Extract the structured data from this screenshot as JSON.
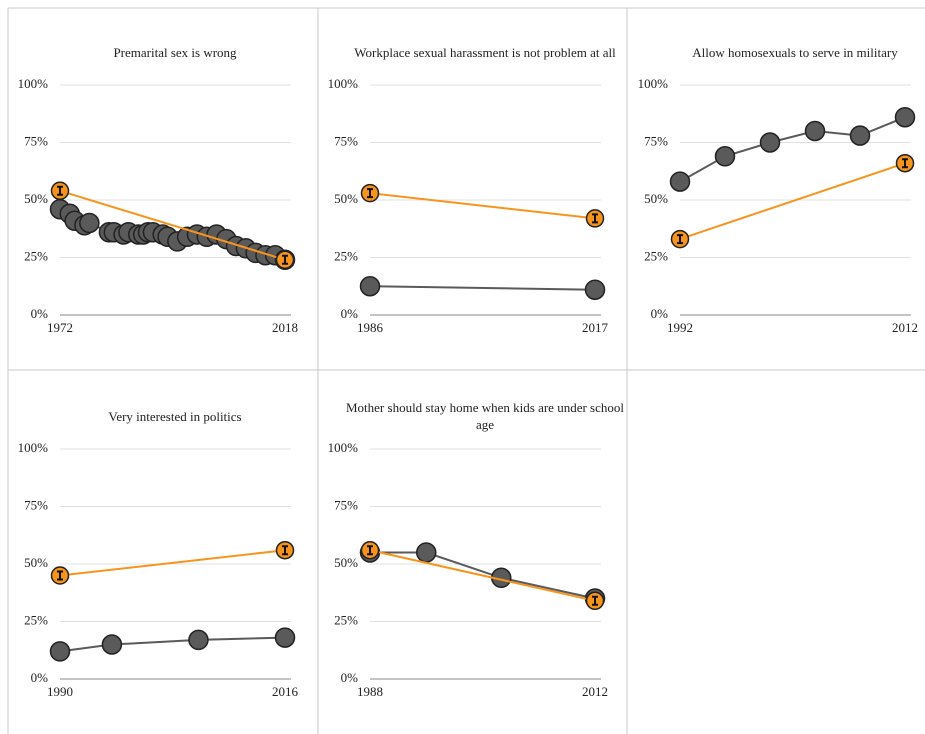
{
  "chart_data": [
    {
      "type": "line",
      "title": "Premarital sex is wrong",
      "xlim": [
        1972,
        2018
      ],
      "xticks": [
        1972,
        2018
      ],
      "ylim": [
        0,
        100
      ],
      "yticks": [
        {
          "value": 0,
          "label": "0%"
        },
        {
          "value": 25,
          "label": "25%"
        },
        {
          "value": 50,
          "label": "50%"
        },
        {
          "value": 75,
          "label": "75%"
        },
        {
          "value": 100,
          "label": "100%"
        }
      ],
      "grid": true,
      "series": [
        {
          "color": "#5a5a5a",
          "x": [
            1972,
            1974,
            1975,
            1977,
            1978,
            1982,
            1983,
            1985,
            1986,
            1988,
            1989,
            1990,
            1991,
            1993,
            1994,
            1996,
            1998,
            2000,
            2002,
            2004,
            2006,
            2008,
            2010,
            2012,
            2014,
            2016,
            2018
          ],
          "values": [
            46,
            44,
            41,
            39,
            40,
            36,
            36,
            35,
            36,
            35,
            35,
            36,
            36,
            35,
            34,
            32,
            34,
            35,
            34,
            35,
            33,
            30,
            29,
            27,
            26,
            26,
            24
          ]
        },
        {
          "color": "#f7941d",
          "x": [
            1972,
            2018
          ],
          "values": [
            54,
            24
          ]
        }
      ]
    },
    {
      "type": "line",
      "title": "Workplace sexual harassment is not problem at all",
      "xlim": [
        1986,
        2017
      ],
      "xticks": [
        1986,
        2017
      ],
      "ylim": [
        0,
        100
      ],
      "yticks": [
        {
          "value": 0,
          "label": "0%"
        },
        {
          "value": 25,
          "label": "25%"
        },
        {
          "value": 50,
          "label": "50%"
        },
        {
          "value": 75,
          "label": "75%"
        },
        {
          "value": 100,
          "label": "100%"
        }
      ],
      "grid": true,
      "series": [
        {
          "color": "#5a5a5a",
          "x": [
            1986,
            2017
          ],
          "values": [
            12.5,
            11
          ]
        },
        {
          "color": "#f7941d",
          "x": [
            1986,
            2017
          ],
          "values": [
            53,
            42
          ]
        }
      ]
    },
    {
      "type": "line",
      "title": "Allow homosexuals to serve in military",
      "xlim": [
        1992,
        2012
      ],
      "xticks": [
        1992,
        2012
      ],
      "ylim": [
        0,
        100
      ],
      "yticks": [
        {
          "value": 0,
          "label": "0%"
        },
        {
          "value": 25,
          "label": "25%"
        },
        {
          "value": 50,
          "label": "50%"
        },
        {
          "value": 75,
          "label": "75%"
        },
        {
          "value": 100,
          "label": "100%"
        }
      ],
      "grid": true,
      "series": [
        {
          "color": "#5a5a5a",
          "x": [
            1992,
            1996,
            2000,
            2004,
            2008,
            2012
          ],
          "values": [
            58,
            69,
            75,
            80,
            78,
            86
          ]
        },
        {
          "color": "#f7941d",
          "x": [
            1992,
            2012
          ],
          "values": [
            33,
            66
          ]
        }
      ]
    },
    {
      "type": "line",
      "title": "Very interested in politics",
      "xlim": [
        1990,
        2016
      ],
      "xticks": [
        1990,
        2016
      ],
      "ylim": [
        0,
        100
      ],
      "yticks": [
        {
          "value": 0,
          "label": "0%"
        },
        {
          "value": 25,
          "label": "25%"
        },
        {
          "value": 50,
          "label": "50%"
        },
        {
          "value": 75,
          "label": "75%"
        },
        {
          "value": 100,
          "label": "100%"
        }
      ],
      "grid": true,
      "series": [
        {
          "color": "#5a5a5a",
          "x": [
            1990,
            1996,
            2006,
            2016
          ],
          "values": [
            12,
            15,
            17,
            18
          ]
        },
        {
          "color": "#f7941d",
          "x": [
            1990,
            2016
          ],
          "values": [
            45,
            56
          ]
        }
      ]
    },
    {
      "type": "line",
      "title": "Mother should stay home when kids are under school age",
      "xlim": [
        1988,
        2012
      ],
      "xticks": [
        1988,
        2012
      ],
      "ylim": [
        0,
        100
      ],
      "yticks": [
        {
          "value": 0,
          "label": "0%"
        },
        {
          "value": 25,
          "label": "25%"
        },
        {
          "value": 50,
          "label": "50%"
        },
        {
          "value": 75,
          "label": "75%"
        },
        {
          "value": 100,
          "label": "100%"
        }
      ],
      "grid": true,
      "series": [
        {
          "color": "#5a5a5a",
          "x": [
            1988,
            1994,
            2002,
            2012
          ],
          "values": [
            55,
            55,
            44,
            35
          ]
        },
        {
          "color": "#f7941d",
          "x": [
            1988,
            2012
          ],
          "values": [
            56,
            34
          ]
        }
      ]
    }
  ]
}
